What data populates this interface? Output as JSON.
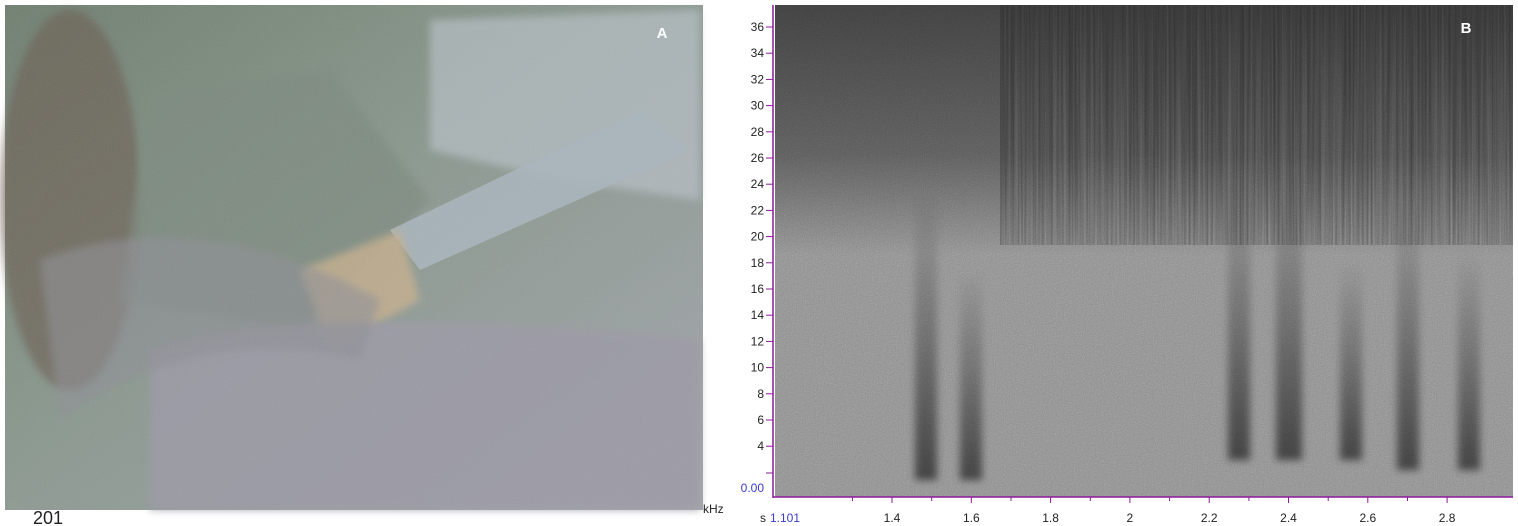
{
  "figure": {
    "panel_a": {
      "label": "A"
    },
    "panel_b": {
      "label": "B",
      "y_unit": "kHz",
      "y_ticks": [
        "36",
        "34",
        "32",
        "30",
        "28",
        "26",
        "24",
        "22",
        "20",
        "18",
        "16",
        "14",
        "12",
        "10",
        "8",
        "6",
        "4"
      ],
      "y_origin": "0.00",
      "x_unit": "s",
      "x_origin": "1.101",
      "x_ticks": [
        "1.4",
        "1.6",
        "1.8",
        "2",
        "2.2",
        "2.4",
        "2.6",
        "2.8"
      ]
    }
  },
  "page_number": "201"
}
